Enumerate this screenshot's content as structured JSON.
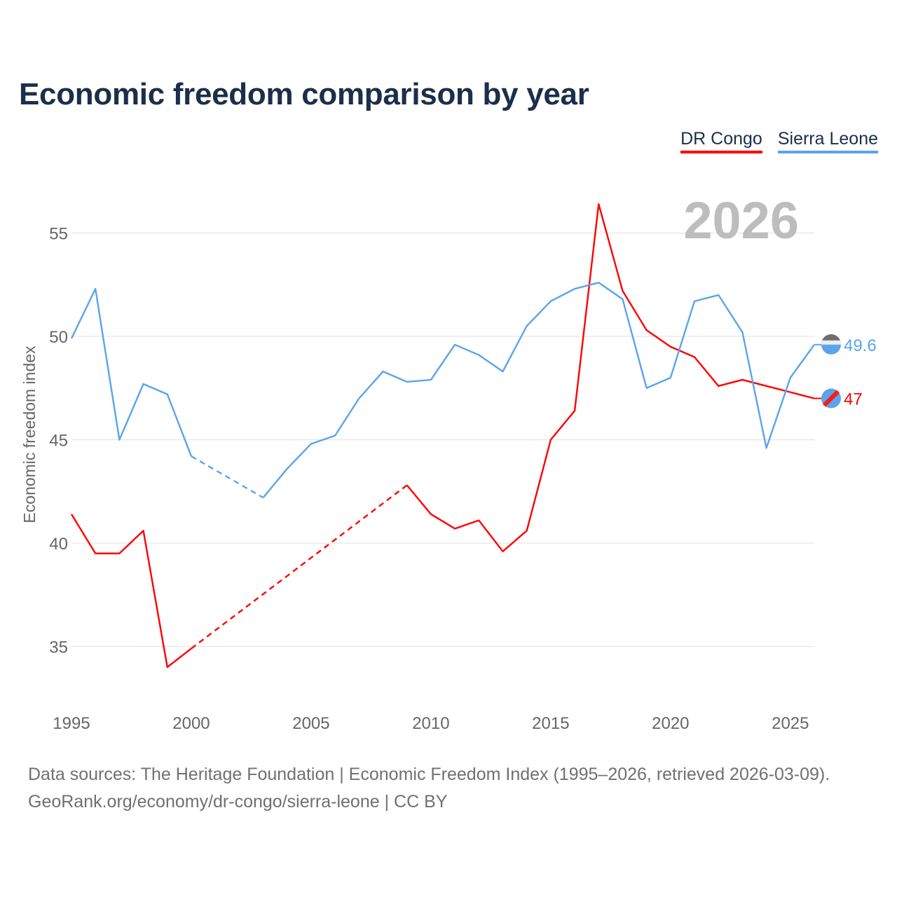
{
  "title": "Economic freedom comparison by year",
  "year_watermark": "2026",
  "footer": {
    "line1": "Data sources: The Heritage Foundation | Economic Freedom Index (1995–2026, retrieved 2026-03-09).",
    "line2": "GeoRank.org/economy/dr-congo/sierra-leone | CC BY"
  },
  "chart_data": {
    "type": "line",
    "title": "Economic freedom comparison by year",
    "xlabel": "",
    "ylabel": "Economic freedom index",
    "xlim": [
      1995,
      2026
    ],
    "ylim": [
      33,
      57.5
    ],
    "xticks": [
      1995,
      2000,
      2005,
      2010,
      2015,
      2020,
      2025
    ],
    "yticks": [
      35,
      40,
      45,
      50,
      55
    ],
    "grid": true,
    "legend_placement": "top-right",
    "x": [
      1995,
      1996,
      1997,
      1998,
      1999,
      2000,
      2001,
      2002,
      2003,
      2004,
      2005,
      2006,
      2007,
      2008,
      2009,
      2010,
      2011,
      2012,
      2013,
      2014,
      2015,
      2016,
      2017,
      2018,
      2019,
      2020,
      2021,
      2022,
      2023,
      2024,
      2025,
      2026
    ],
    "series": [
      {
        "name": "DR Congo",
        "color": "#ff0000",
        "end_label": "47",
        "values": [
          41.4,
          39.5,
          39.5,
          40.6,
          34.0,
          34.9,
          null,
          null,
          null,
          null,
          null,
          null,
          null,
          null,
          42.8,
          41.4,
          40.7,
          41.1,
          39.6,
          40.6,
          45.0,
          46.4,
          56.4,
          52.2,
          50.3,
          49.5,
          49.0,
          47.6,
          47.9,
          47.6,
          47.3,
          47.0
        ]
      },
      {
        "name": "Sierra Leone",
        "color": "#5ba4ea",
        "end_label": "49.6",
        "values": [
          49.9,
          52.3,
          45.0,
          47.7,
          47.2,
          44.2,
          null,
          null,
          42.2,
          43.6,
          44.8,
          45.2,
          47.0,
          48.3,
          47.8,
          47.9,
          49.6,
          49.1,
          48.3,
          50.5,
          51.7,
          52.3,
          52.6,
          51.8,
          47.5,
          48.0,
          51.7,
          52.0,
          50.2,
          44.6,
          48.0,
          49.6
        ]
      }
    ]
  }
}
